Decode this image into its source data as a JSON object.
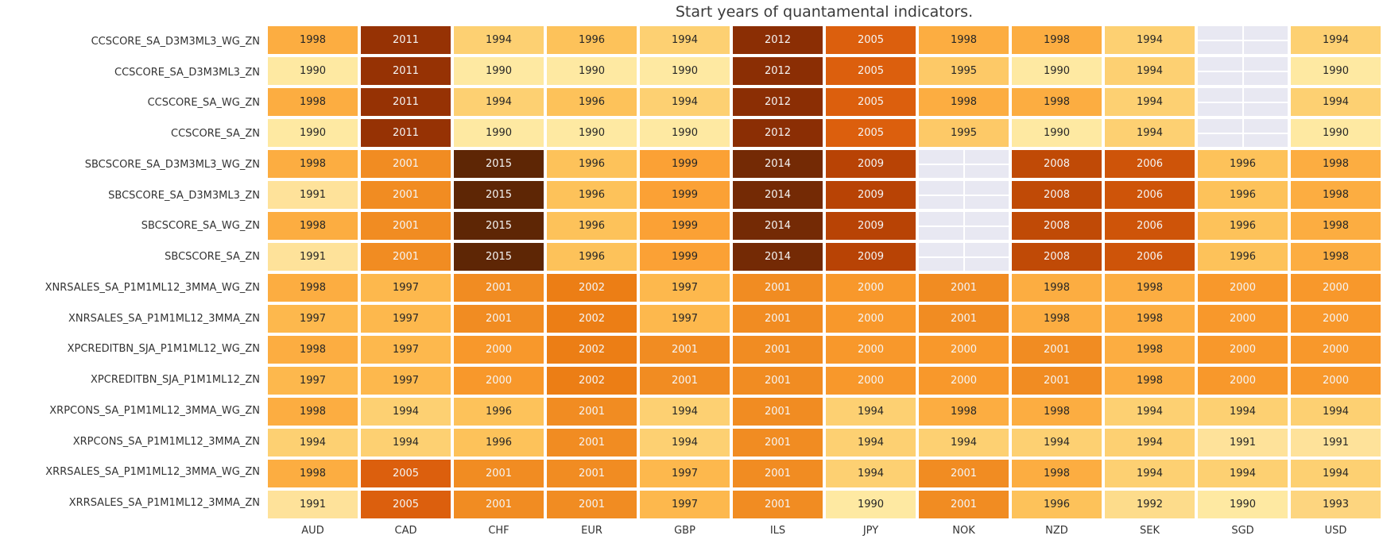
{
  "chart_data": {
    "type": "heatmap",
    "title": "Start years of quantamental indicators.",
    "xlabel": "",
    "ylabel": "",
    "legend": "none",
    "grid": "off",
    "columns": [
      "AUD",
      "CAD",
      "CHF",
      "EUR",
      "GBP",
      "ILS",
      "JPY",
      "NOK",
      "NZD",
      "SEK",
      "SGD",
      "USD"
    ],
    "rows": [
      "CCSCORE_SA_D3M3ML3_WG_ZN",
      "CCSCORE_SA_D3M3ML3_ZN",
      "CCSCORE_SA_WG_ZN",
      "CCSCORE_SA_ZN",
      "SBCSCORE_SA_D3M3ML3_WG_ZN",
      "SBCSCORE_SA_D3M3ML3_ZN",
      "SBCSCORE_SA_WG_ZN",
      "SBCSCORE_SA_ZN",
      "XNRSALES_SA_P1M1ML12_3MMA_WG_ZN",
      "XNRSALES_SA_P1M1ML12_3MMA_ZN",
      "XPCREDITBN_SJA_P1M1ML12_WG_ZN",
      "XPCREDITBN_SJA_P1M1ML12_ZN",
      "XRPCONS_SA_P1M1ML12_3MMA_WG_ZN",
      "XRPCONS_SA_P1M1ML12_3MMA_ZN",
      "XRRSALES_SA_P1M1ML12_3MMA_WG_ZN",
      "XRRSALES_SA_P1M1ML12_3MMA_ZN"
    ],
    "values": [
      [
        1998,
        2011,
        1994,
        1996,
        1994,
        2012,
        2005,
        1998,
        1998,
        1994,
        null,
        1994
      ],
      [
        1990,
        2011,
        1990,
        1990,
        1990,
        2012,
        2005,
        1995,
        1990,
        1994,
        null,
        1990
      ],
      [
        1998,
        2011,
        1994,
        1996,
        1994,
        2012,
        2005,
        1998,
        1998,
        1994,
        null,
        1994
      ],
      [
        1990,
        2011,
        1990,
        1990,
        1990,
        2012,
        2005,
        1995,
        1990,
        1994,
        null,
        1990
      ],
      [
        1998,
        2001,
        2015,
        1996,
        1999,
        2014,
        2009,
        null,
        2008,
        2006,
        1996,
        1998
      ],
      [
        1991,
        2001,
        2015,
        1996,
        1999,
        2014,
        2009,
        null,
        2008,
        2006,
        1996,
        1998
      ],
      [
        1998,
        2001,
        2015,
        1996,
        1999,
        2014,
        2009,
        null,
        2008,
        2006,
        1996,
        1998
      ],
      [
        1991,
        2001,
        2015,
        1996,
        1999,
        2014,
        2009,
        null,
        2008,
        2006,
        1996,
        1998
      ],
      [
        1998,
        1997,
        2001,
        2002,
        1997,
        2001,
        2000,
        2001,
        1998,
        1998,
        2000,
        2000
      ],
      [
        1997,
        1997,
        2001,
        2002,
        1997,
        2001,
        2000,
        2001,
        1998,
        1998,
        2000,
        2000
      ],
      [
        1998,
        1997,
        2000,
        2002,
        2001,
        2001,
        2000,
        2000,
        2001,
        1998,
        2000,
        2000
      ],
      [
        1997,
        1997,
        2000,
        2002,
        2001,
        2001,
        2000,
        2000,
        2001,
        1998,
        2000,
        2000
      ],
      [
        1998,
        1994,
        1996,
        2001,
        1994,
        2001,
        1994,
        1998,
        1998,
        1994,
        1994,
        1994
      ],
      [
        1994,
        1994,
        1996,
        2001,
        1994,
        2001,
        1994,
        1994,
        1994,
        1994,
        1991,
        1991
      ],
      [
        1998,
        2005,
        2001,
        2001,
        1997,
        2001,
        1994,
        2001,
        1998,
        1994,
        1994,
        1994
      ],
      [
        1991,
        2005,
        2001,
        2001,
        1997,
        2001,
        1990,
        2001,
        1996,
        1992,
        1990,
        1993
      ]
    ],
    "value_range": [
      1990,
      2015
    ],
    "colormap_name": "YlOrBr",
    "year_colors": {
      "1990": "#FEE9A2",
      "1991": "#FEE29A",
      "1992": "#FDDC8B",
      "1993": "#FDD57F",
      "1994": "#FDD072",
      "1995": "#FDC967",
      "1996": "#FDC25A",
      "1997": "#FDB84D",
      "1998": "#FCAD41",
      "1999": "#FBA135",
      "2000": "#F8982B",
      "2001": "#F18C22",
      "2002": "#EC7E15",
      "2005": "#DC5F0D",
      "2006": "#CE5409",
      "2008": "#C04A06",
      "2009": "#B84305",
      "2011": "#963204",
      "2012": "#8B2E04",
      "2014": "#742A05",
      "2015": "#5E2605"
    },
    "missing_color": "#E8E8F2",
    "annot_text_dark": "#262626",
    "annot_text_light": "#F5F5F5",
    "light_text_from_year": 2000
  }
}
